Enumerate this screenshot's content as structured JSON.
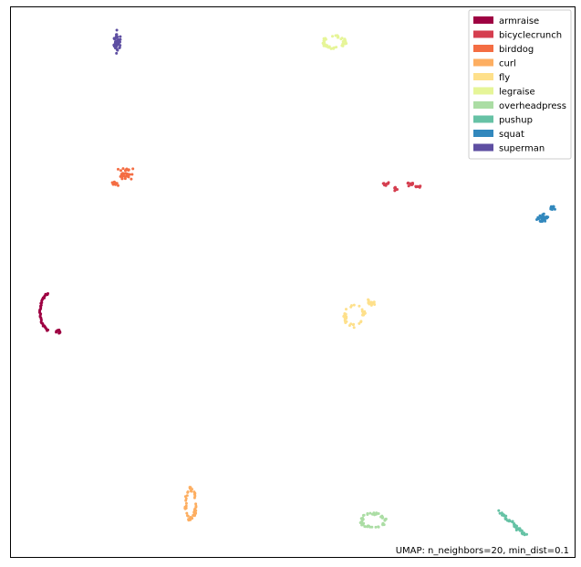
{
  "chart_data": {
    "type": "scatter",
    "title": "",
    "xlabel": "",
    "ylabel": "",
    "xlim": [
      0,
      100
    ],
    "ylim": [
      0,
      100
    ],
    "grid": false,
    "axis_ticks": false,
    "legend_position": "top-right",
    "annotation": "UMAP: n_neighbors=20, min_dist=0.1",
    "series": [
      {
        "name": "armraise",
        "color": "#9e0142",
        "clusters": [
          {
            "type": "arc",
            "cx": 7.2,
            "cy": 44.5,
            "r": 3.4,
            "a0": 105,
            "a1": 255,
            "n": 38
          },
          {
            "type": "blob",
            "cx": 8.5,
            "cy": 41.0,
            "rx": 0.9,
            "ry": 0.5,
            "n": 10
          }
        ]
      },
      {
        "name": "bicyclecrunch",
        "color": "#d53e4f",
        "clusters": [
          {
            "type": "blob",
            "cx": 66.6,
            "cy": 67.7,
            "rx": 0.8,
            "ry": 0.5,
            "n": 10
          },
          {
            "type": "blob",
            "cx": 68.3,
            "cy": 66.9,
            "rx": 0.6,
            "ry": 0.5,
            "n": 8
          },
          {
            "type": "blob",
            "cx": 70.8,
            "cy": 67.7,
            "rx": 0.8,
            "ry": 0.6,
            "n": 10
          },
          {
            "type": "blob",
            "cx": 72.4,
            "cy": 67.2,
            "rx": 0.8,
            "ry": 0.4,
            "n": 8
          }
        ]
      },
      {
        "name": "birddog",
        "color": "#f46d43",
        "clusters": [
          {
            "type": "blob",
            "cx": 20.5,
            "cy": 69.6,
            "rx": 1.9,
            "ry": 1.4,
            "n": 38
          },
          {
            "type": "blob",
            "cx": 18.3,
            "cy": 67.8,
            "rx": 1.1,
            "ry": 0.6,
            "n": 12
          }
        ]
      },
      {
        "name": "curl",
        "color": "#fdae61",
        "clusters": [
          {
            "type": "ring",
            "cx": 32.0,
            "cy": 9.6,
            "rx": 1.0,
            "ry": 3.1,
            "n": 50
          }
        ]
      },
      {
        "name": "fly",
        "color": "#fee08b",
        "clusters": [
          {
            "type": "ring",
            "cx": 61.0,
            "cy": 43.8,
            "rx": 1.9,
            "ry": 2.1,
            "n": 36
          },
          {
            "type": "blob",
            "cx": 63.8,
            "cy": 46.3,
            "rx": 1.0,
            "ry": 0.8,
            "n": 14
          }
        ]
      },
      {
        "name": "legraise",
        "color": "#e6f598",
        "clusters": [
          {
            "type": "ring",
            "cx": 57.4,
            "cy": 93.5,
            "rx": 2.1,
            "ry": 1.2,
            "n": 50
          }
        ]
      },
      {
        "name": "overheadpress",
        "color": "#abdda4",
        "clusters": [
          {
            "type": "ring",
            "cx": 64.3,
            "cy": 6.6,
            "rx": 2.3,
            "ry": 1.4,
            "n": 50
          }
        ]
      },
      {
        "name": "pushup",
        "color": "#66c2a5",
        "clusters": [
          {
            "type": "line",
            "x0": 86.3,
            "y0": 8.6,
            "x1": 91.3,
            "y1": 4.0,
            "n": 50,
            "spread": 0.6
          }
        ]
      },
      {
        "name": "squat",
        "color": "#3288bd",
        "clusters": [
          {
            "type": "blob",
            "cx": 94.3,
            "cy": 61.6,
            "rx": 1.4,
            "ry": 0.9,
            "n": 38
          },
          {
            "type": "blob",
            "cx": 96.0,
            "cy": 63.5,
            "rx": 0.6,
            "ry": 0.8,
            "n": 12
          }
        ]
      },
      {
        "name": "superman",
        "color": "#5e4fa2",
        "clusters": [
          {
            "type": "blob",
            "cx": 19.0,
            "cy": 93.5,
            "rx": 0.9,
            "ry": 2.8,
            "n": 50
          }
        ]
      }
    ]
  }
}
